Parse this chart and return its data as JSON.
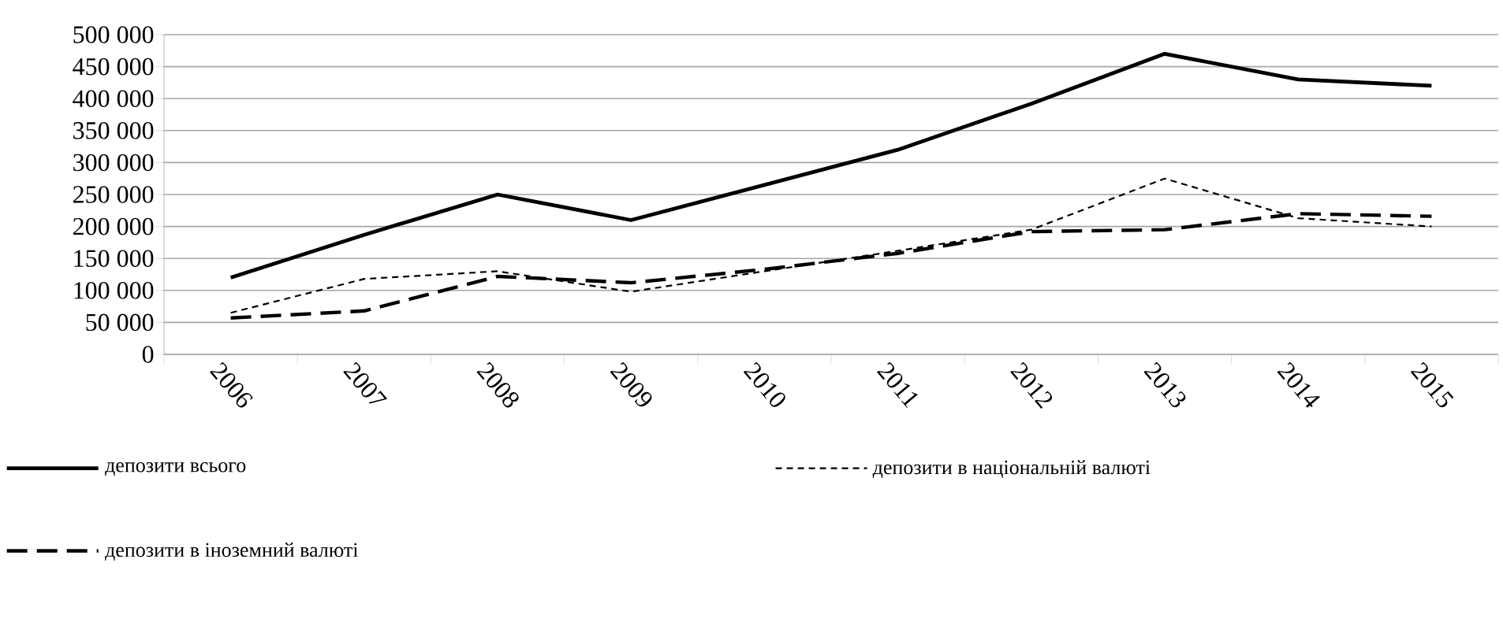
{
  "chart_data": {
    "type": "line",
    "categories": [
      "2006",
      "2007",
      "2008",
      "2009",
      "2010",
      "2011",
      "2012",
      "2013",
      "2014",
      "2015"
    ],
    "series": [
      {
        "name": "депозити всього",
        "color": "#000000",
        "line_style": "solid",
        "values": [
          120000,
          187000,
          250000,
          210000,
          265000,
          320000,
          392000,
          470000,
          430000,
          420000
        ]
      },
      {
        "name": "депозити в національній валюті",
        "color": "#000000",
        "line_style": "dotted",
        "values": [
          65000,
          118000,
          130000,
          98000,
          130000,
          162000,
          195000,
          275000,
          213000,
          200000
        ]
      },
      {
        "name": "депозити в іноземний валюті",
        "color": "#000000",
        "line_style": "dashed",
        "values": [
          57000,
          68000,
          122000,
          112000,
          133000,
          158000,
          192000,
          195000,
          220000,
          216000
        ]
      }
    ],
    "ylim": [
      0,
      500000
    ],
    "yticks": [
      {
        "value": 0,
        "label": "0"
      },
      {
        "value": 50000,
        "label": "50 000"
      },
      {
        "value": 100000,
        "label": "100 000"
      },
      {
        "value": 150000,
        "label": "150 000"
      },
      {
        "value": 200000,
        "label": "200 000"
      },
      {
        "value": 250000,
        "label": "250 000"
      },
      {
        "value": 300000,
        "label": "300 000"
      },
      {
        "value": 350000,
        "label": "350 000"
      },
      {
        "value": 400000,
        "label": "400 000"
      },
      {
        "value": 450000,
        "label": "450 000"
      },
      {
        "value": 500000,
        "label": "500 000"
      }
    ],
    "grid": "y",
    "legend": "bottom",
    "marker": "none"
  }
}
